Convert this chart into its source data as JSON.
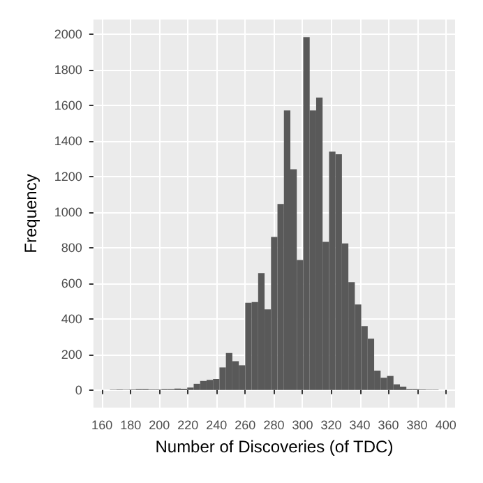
{
  "chart_data": {
    "type": "histogram",
    "xlabel": "Number of Discoveries (of TDC)",
    "ylabel": "Frequency",
    "color": "#595959",
    "bins": [
      165.5,
      170,
      174.5,
      179,
      183.5,
      188,
      192.5,
      197,
      201.5,
      206,
      210.5,
      215,
      219.5,
      224,
      228.5,
      233,
      237.5,
      242,
      246.5,
      251,
      255.5,
      260,
      264.5,
      269,
      273.5,
      278,
      282.5,
      287,
      291.5,
      296,
      300.5,
      305,
      309.5,
      314,
      318.5,
      323,
      327.5,
      332,
      336.5,
      341,
      345.5,
      350,
      354.5,
      359,
      363.5,
      368,
      372.5,
      377,
      381.5,
      386,
      390.5,
      395
    ],
    "values": [
      2,
      3,
      2,
      3,
      5,
      5,
      3,
      3,
      5,
      5,
      8,
      7,
      14,
      35,
      51,
      57,
      62,
      127,
      208,
      162,
      139,
      491,
      495,
      657,
      453,
      861,
      1046,
      1572,
      1241,
      731,
      1984,
      1572,
      1644,
      833,
      1340,
      1326,
      824,
      606,
      481,
      359,
      289,
      109,
      69,
      79,
      32,
      19,
      5,
      5,
      3,
      2,
      2
    ],
    "xlim": [
      154,
      406.5
    ],
    "ylim": [
      -99,
      2083
    ],
    "xticks": [
      160,
      180,
      200,
      220,
      240,
      260,
      280,
      300,
      320,
      340,
      360,
      380,
      400
    ],
    "yticks": [
      0,
      200,
      400,
      600,
      800,
      1000,
      1200,
      1400,
      1600,
      1800,
      2000
    ],
    "grid": true
  }
}
